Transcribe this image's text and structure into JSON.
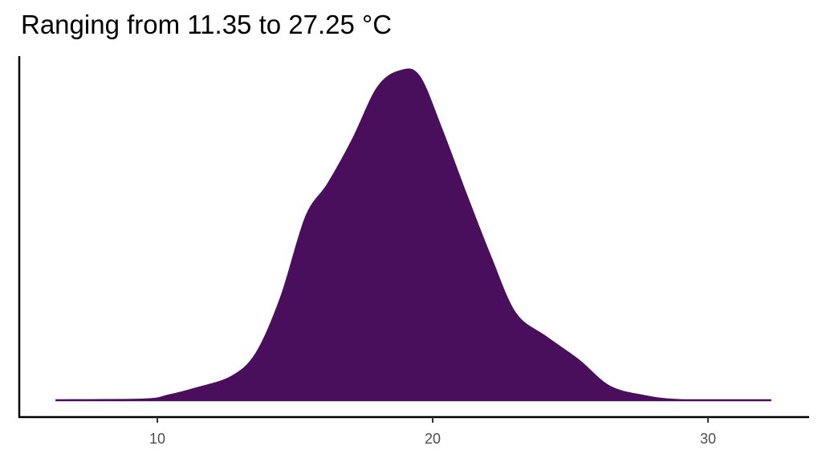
{
  "chart_data": {
    "type": "area",
    "title": "Ranging from 11.35 to 27.25 °C",
    "xlabel": "",
    "ylabel": "",
    "xlim": [
      5.2,
      33.7
    ],
    "ylim": [
      0,
      0.147
    ],
    "x_ticks": [
      "10",
      "20",
      "30"
    ],
    "y_ticks": [],
    "grid": false,
    "fill_color": "#4a0f5c",
    "x": [
      6.3,
      9.5,
      10.4,
      11.4,
      12.7,
      13.6,
      14.5,
      15.4,
      16.2,
      17.1,
      18.0,
      18.8,
      19.5,
      20.3,
      21.2,
      22.1,
      23.0,
      24.1,
      25.3,
      26.4,
      27.6,
      29.1,
      32.3
    ],
    "density": [
      0,
      0.0003,
      0.002,
      0.005,
      0.01,
      0.02,
      0.044,
      0.078,
      0.092,
      0.111,
      0.133,
      0.14,
      0.138,
      0.116,
      0.088,
      0.061,
      0.037,
      0.027,
      0.017,
      0.006,
      0.002,
      0,
      0
    ]
  }
}
